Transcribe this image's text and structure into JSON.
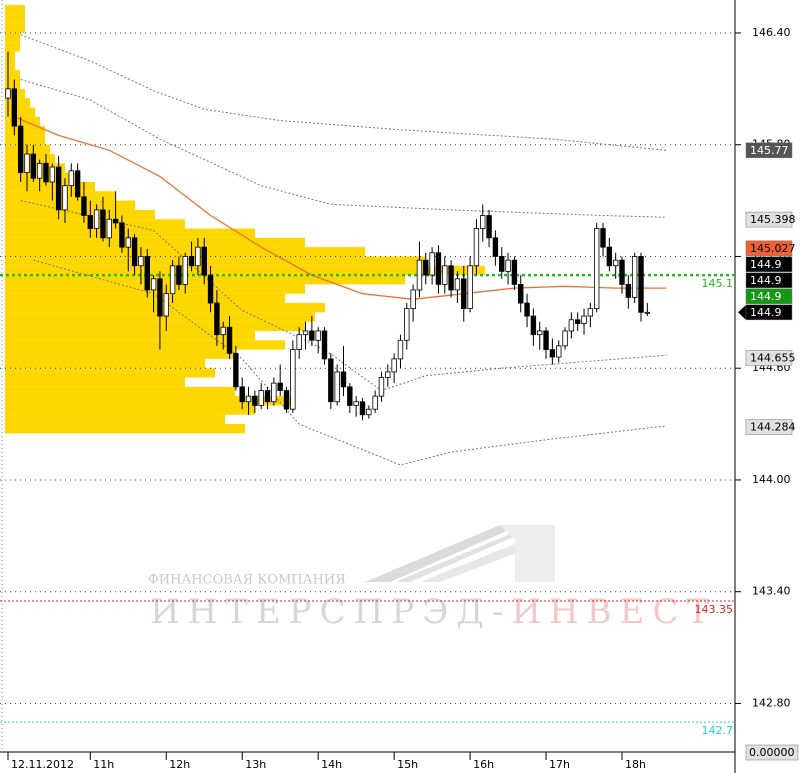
{
  "chart_data": {
    "type": "candlestick",
    "categories": [
      "12.11.2012",
      null,
      null,
      null,
      null,
      null,
      null,
      null,
      null,
      null,
      null,
      null,
      null,
      "11h",
      null,
      null,
      null,
      null,
      null,
      null,
      null,
      null,
      null,
      null,
      null,
      "12h",
      null,
      null,
      null,
      null,
      null,
      null,
      null,
      null,
      null,
      null,
      null,
      "13h",
      null,
      null,
      null,
      null,
      null,
      null,
      null,
      null,
      null,
      null,
      null,
      "14h",
      null,
      null,
      null,
      null,
      null,
      null,
      null,
      null,
      null,
      null,
      null,
      "15h",
      null,
      null,
      null,
      null,
      null,
      null,
      null,
      null,
      null,
      null,
      null,
      "16h",
      null,
      null,
      null,
      null,
      null,
      null,
      null,
      null,
      null,
      null,
      null,
      "17h",
      null,
      null,
      null,
      null,
      null,
      null,
      null,
      null,
      null,
      null,
      null,
      "18h",
      null,
      null,
      null,
      null
    ],
    "ohlc": [
      [
        146.05,
        146.3,
        145.95,
        146.1
      ],
      [
        146.1,
        146.15,
        145.85,
        145.9
      ],
      [
        145.9,
        145.95,
        145.6,
        145.65
      ],
      [
        145.65,
        145.8,
        145.55,
        145.75
      ],
      [
        145.75,
        145.8,
        145.6,
        145.62
      ],
      [
        145.62,
        145.72,
        145.55,
        145.7
      ],
      [
        145.7,
        145.75,
        145.58,
        145.6
      ],
      [
        145.6,
        145.7,
        145.5,
        145.68
      ],
      [
        145.68,
        145.74,
        145.4,
        145.45
      ],
      [
        145.45,
        145.62,
        145.38,
        145.58
      ],
      [
        145.58,
        145.7,
        145.52,
        145.66
      ],
      [
        145.66,
        145.7,
        145.5,
        145.52
      ],
      [
        145.52,
        145.6,
        145.38,
        145.42
      ],
      [
        145.42,
        145.5,
        145.3,
        145.35
      ],
      [
        145.35,
        145.48,
        145.3,
        145.45
      ],
      [
        145.45,
        145.52,
        145.28,
        145.3
      ],
      [
        145.3,
        145.45,
        145.25,
        145.4
      ],
      [
        145.4,
        145.55,
        145.35,
        145.38
      ],
      [
        145.38,
        145.42,
        145.22,
        145.25
      ],
      [
        145.25,
        145.35,
        145.12,
        145.3
      ],
      [
        145.3,
        145.32,
        145.1,
        145.15
      ],
      [
        145.15,
        145.25,
        145.05,
        145.2
      ],
      [
        145.2,
        145.24,
        144.98,
        145.02
      ],
      [
        145.02,
        145.1,
        144.9,
        145.08
      ],
      [
        145.08,
        145.12,
        144.7,
        144.88
      ],
      [
        144.88,
        145.05,
        144.8,
        145.0
      ],
      [
        145.0,
        145.18,
        144.95,
        145.15
      ],
      [
        145.15,
        145.2,
        145.02,
        145.05
      ],
      [
        145.05,
        145.22,
        145.0,
        145.2
      ],
      [
        145.2,
        145.28,
        145.12,
        145.15
      ],
      [
        145.15,
        145.3,
        145.1,
        145.25
      ],
      [
        145.25,
        145.3,
        145.05,
        145.1
      ],
      [
        145.1,
        145.15,
        144.9,
        144.95
      ],
      [
        144.95,
        145.02,
        144.72,
        144.78
      ],
      [
        144.78,
        144.85,
        144.7,
        144.82
      ],
      [
        144.82,
        144.88,
        144.65,
        144.68
      ],
      [
        144.68,
        144.72,
        144.48,
        144.5
      ],
      [
        144.5,
        144.55,
        144.38,
        144.42
      ],
      [
        144.42,
        144.5,
        144.35,
        144.45
      ],
      [
        144.45,
        144.48,
        144.36,
        144.4
      ],
      [
        144.4,
        144.52,
        144.38,
        144.48
      ],
      [
        144.48,
        144.5,
        144.38,
        144.42
      ],
      [
        144.42,
        144.55,
        144.4,
        144.52
      ],
      [
        144.52,
        144.62,
        144.45,
        144.48
      ],
      [
        144.48,
        144.5,
        144.36,
        144.38
      ],
      [
        144.38,
        144.75,
        144.36,
        144.7
      ],
      [
        144.7,
        144.82,
        144.65,
        144.78
      ],
      [
        144.78,
        144.85,
        144.7,
        144.8
      ],
      [
        144.8,
        144.88,
        144.72,
        144.75
      ],
      [
        144.75,
        144.82,
        144.68,
        144.8
      ],
      [
        144.8,
        144.82,
        144.62,
        144.65
      ],
      [
        144.65,
        144.68,
        144.38,
        144.42
      ],
      [
        144.42,
        144.62,
        144.4,
        144.58
      ],
      [
        144.58,
        144.72,
        144.45,
        144.5
      ],
      [
        144.5,
        144.52,
        144.36,
        144.4
      ],
      [
        144.4,
        144.45,
        144.34,
        144.42
      ],
      [
        144.42,
        144.44,
        144.32,
        144.35
      ],
      [
        144.35,
        144.4,
        144.33,
        144.38
      ],
      [
        144.38,
        144.48,
        144.36,
        144.45
      ],
      [
        144.45,
        144.58,
        144.42,
        144.55
      ],
      [
        144.55,
        144.62,
        144.5,
        144.58
      ],
      [
        144.58,
        144.68,
        144.52,
        144.65
      ],
      [
        144.65,
        144.78,
        144.6,
        144.75
      ],
      [
        144.75,
        144.95,
        144.7,
        144.92
      ],
      [
        144.92,
        145.05,
        144.85,
        145.02
      ],
      [
        145.02,
        145.28,
        144.98,
        145.18
      ],
      [
        145.18,
        145.22,
        145.05,
        145.1
      ],
      [
        145.1,
        145.25,
        145.05,
        145.22
      ],
      [
        145.22,
        145.26,
        145.0,
        145.05
      ],
      [
        145.05,
        145.2,
        145.0,
        145.15
      ],
      [
        145.15,
        145.18,
        144.98,
        145.02
      ],
      [
        145.02,
        145.12,
        144.95,
        145.08
      ],
      [
        145.08,
        145.15,
        144.85,
        144.92
      ],
      [
        144.92,
        145.2,
        144.9,
        145.15
      ],
      [
        145.15,
        145.4,
        145.1,
        145.35
      ],
      [
        145.35,
        145.48,
        145.28,
        145.42
      ],
      [
        145.42,
        145.45,
        145.25,
        145.3
      ],
      [
        145.3,
        145.34,
        145.15,
        145.2
      ],
      [
        145.2,
        145.25,
        145.08,
        145.12
      ],
      [
        145.12,
        145.22,
        145.05,
        145.18
      ],
      [
        145.18,
        145.2,
        145.02,
        145.05
      ],
      [
        145.05,
        145.1,
        144.9,
        144.95
      ],
      [
        144.95,
        145.0,
        144.82,
        144.88
      ],
      [
        144.88,
        144.92,
        144.72,
        144.78
      ],
      [
        144.78,
        144.85,
        144.7,
        144.8
      ],
      [
        144.8,
        144.82,
        144.65,
        144.7
      ],
      [
        144.7,
        144.76,
        144.62,
        144.66
      ],
      [
        144.66,
        144.75,
        144.63,
        144.72
      ],
      [
        144.72,
        144.82,
        144.7,
        144.8
      ],
      [
        144.8,
        144.9,
        144.76,
        144.86
      ],
      [
        144.86,
        144.9,
        144.8,
        144.84
      ],
      [
        144.84,
        144.92,
        144.78,
        144.88
      ],
      [
        144.88,
        144.95,
        144.82,
        144.92
      ],
      [
        144.92,
        145.38,
        144.9,
        145.35
      ],
      [
        145.35,
        145.38,
        145.2,
        145.25
      ],
      [
        145.25,
        145.3,
        145.12,
        145.15
      ],
      [
        145.15,
        145.22,
        145.08,
        145.18
      ],
      [
        145.18,
        145.2,
        145.0,
        145.05
      ],
      [
        145.05,
        145.1,
        144.92,
        144.98
      ],
      [
        144.98,
        145.22,
        144.95,
        145.2
      ],
      [
        145.2,
        145.22,
        144.85,
        144.9
      ],
      [
        144.9,
        144.95,
        144.88,
        144.9
      ]
    ],
    "up_color": "#ffffff",
    "down_color": "#000000",
    "ylim": [
      142.55,
      146.577
    ],
    "yticks": [
      {
        "value": 146.4,
        "label": "146.40"
      },
      {
        "value": 145.8,
        "label": "145.80"
      },
      {
        "value": 145.2,
        "label": "145.20"
      },
      {
        "value": 144.6,
        "label": "144.60"
      },
      {
        "value": 144.0,
        "label": "144.00"
      },
      {
        "value": 143.4,
        "label": "143.40"
      },
      {
        "value": 142.8,
        "label": "142.80"
      }
    ],
    "grid": true,
    "profile": {
      "color": "#ffd700",
      "bins": [
        144.25,
        144.3,
        144.35,
        144.4,
        144.45,
        144.5,
        144.55,
        144.6,
        144.65,
        144.7,
        144.75,
        144.8,
        144.85,
        144.9,
        144.95,
        145.0,
        145.05,
        145.1,
        145.15,
        145.2,
        145.25,
        145.3,
        145.35,
        145.4,
        145.45,
        145.5,
        145.55,
        145.6,
        145.65,
        145.7,
        145.75,
        145.8,
        145.85,
        145.9,
        145.95,
        146.0,
        146.05,
        146.1,
        146.15,
        146.2,
        146.25,
        146.3,
        146.35,
        146.4,
        146.45,
        146.5,
        146.55
      ],
      "counts": [
        48,
        44,
        50,
        58,
        46,
        36,
        42,
        40,
        46,
        56,
        50,
        60,
        62,
        64,
        56,
        60,
        80,
        96,
        84,
        72,
        60,
        50,
        36,
        30,
        26,
        22,
        18,
        14,
        12,
        10,
        9,
        8,
        8,
        7,
        6,
        5,
        4,
        3,
        3,
        2,
        2,
        3,
        3,
        4,
        4,
        4
      ]
    },
    "overlays": [
      {
        "color": "#f07030",
        "dash": false,
        "x": [
          1,
          8,
          16,
          24,
          32,
          40,
          48,
          56,
          64,
          72,
          80,
          88,
          96,
          104
        ],
        "values": [
          145.95,
          145.85,
          145.77,
          145.63,
          145.42,
          145.25,
          145.1,
          145.0,
          144.97,
          145.0,
          145.03,
          145.04,
          145.03,
          145.03
        ]
      },
      {
        "color": "#777777",
        "dash": true,
        "x": [
          2,
          13,
          23,
          31,
          43,
          62,
          86,
          104
        ],
        "values": [
          146.39,
          146.25,
          146.09,
          145.99,
          145.93,
          145.88,
          145.83,
          145.77
        ]
      },
      {
        "color": "#777777",
        "dash": true,
        "x": [
          2,
          13,
          24,
          40,
          51,
          70,
          94,
          104
        ],
        "values": [
          146.15,
          146.04,
          145.83,
          145.58,
          145.48,
          145.45,
          145.42,
          145.41
        ]
      },
      {
        "color": "#777777",
        "dash": true,
        "x": [
          2,
          23,
          37,
          50,
          59,
          66,
          78,
          104
        ],
        "values": [
          145.5,
          145.34,
          144.91,
          144.7,
          144.48,
          144.56,
          144.6,
          144.67
        ]
      },
      {
        "color": "#777777",
        "dash": true,
        "x": [
          4,
          23,
          37,
          46,
          62,
          70,
          86,
          104
        ],
        "values": [
          145.18,
          145.0,
          144.65,
          144.3,
          144.08,
          144.15,
          144.22,
          144.29
        ]
      }
    ],
    "levels": [
      {
        "value": 145.1,
        "color": "#22bb22"
      },
      {
        "value": 143.35,
        "color": "#e02020"
      },
      {
        "value": 142.7,
        "color": "#20d0e0"
      }
    ],
    "markers": [
      {
        "value": 145.77,
        "bg": "#555555",
        "fg": "#ffffff"
      },
      {
        "value": 145.398,
        "bg": "#e0e0e0",
        "fg": "#000000"
      },
      {
        "value": 145.027,
        "bg": "#f06030",
        "fg": "#000000"
      },
      {
        "value": 144.9,
        "bg": "#000000",
        "fg": "#ffffff"
      },
      {
        "value": 144.9,
        "bg": "#000000",
        "fg": "#ffffff"
      },
      {
        "value": 144.9,
        "bg": "#119911",
        "fg": "#ffffff"
      },
      {
        "value": 144.9,
        "bg": "#000000",
        "fg": "#ffffff",
        "pointer": true
      },
      {
        "value": 144.655,
        "bg": "#e0e0e0",
        "fg": "#000000"
      },
      {
        "value": 144.284,
        "bg": "#e0e0e0",
        "fg": "#000000"
      }
    ],
    "sub_axis_label": {
      "value": 0,
      "label": "0.00000"
    },
    "watermark": {
      "company": "ФИНАНСОВАЯ КОМПАНИЯ",
      "name_1": "ИНТЕРСПРЭД-",
      "name_2": "ИНВЕСТ"
    }
  }
}
